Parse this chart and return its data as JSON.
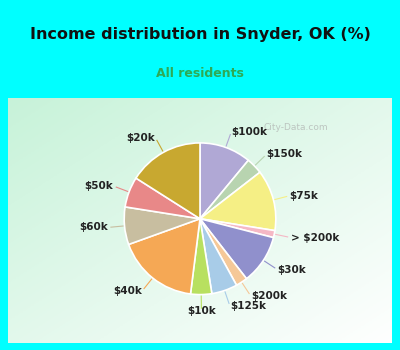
{
  "title": "Income distribution in Snyder, OK (%)",
  "subtitle": "All residents",
  "title_color": "#111111",
  "subtitle_color": "#2eaa55",
  "bg_cyan": "#00ffff",
  "watermark": "City-Data.com",
  "slices": [
    {
      "label": "$100k",
      "value": 11.0,
      "color": "#b0a8d5"
    },
    {
      "label": "$150k",
      "value": 3.5,
      "color": "#b8d4b0"
    },
    {
      "label": "$75k",
      "value": 13.0,
      "color": "#f5ef85"
    },
    {
      "label": "> $200k",
      "value": 1.5,
      "color": "#f5b8c5"
    },
    {
      "label": "$30k",
      "value": 10.5,
      "color": "#9090cc"
    },
    {
      "label": "$200k",
      "value": 2.5,
      "color": "#f5c898"
    },
    {
      "label": "$125k",
      "value": 5.5,
      "color": "#a8cce8"
    },
    {
      "label": "$10k",
      "value": 4.5,
      "color": "#b8e060"
    },
    {
      "label": "$40k",
      "value": 17.5,
      "color": "#f5a855"
    },
    {
      "label": "$60k",
      "value": 8.0,
      "color": "#c8bea0"
    },
    {
      "label": "$50k",
      "value": 6.5,
      "color": "#e88888"
    },
    {
      "label": "$20k",
      "value": 16.0,
      "color": "#c8a830"
    }
  ],
  "label_fontsize": 7.5,
  "label_color": "#222222",
  "title_fontsize": 11.5,
  "subtitle_fontsize": 9.0
}
